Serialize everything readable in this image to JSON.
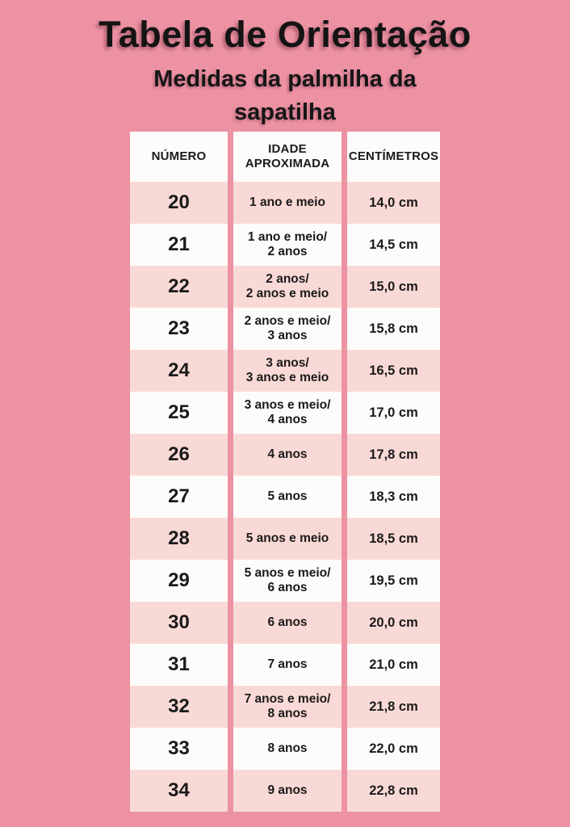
{
  "page": {
    "title": "Tabela de Orientação",
    "subtitle": "Medidas da palmilha da\nsapatilha"
  },
  "colors": {
    "background_pink": "#ec92a3",
    "row_pink": "#f9d9d6",
    "row_white": "#fdfcfa",
    "text": "#1a1a1a"
  },
  "chart_data": {
    "type": "table",
    "title": "Tabela de Orientação",
    "subtitle": "Medidas da palmilha da sapatilha",
    "columns": [
      "NÚMERO",
      "IDADE\nAPROXIMADA",
      "CENTÍMETROS"
    ],
    "rows": [
      {
        "numero": "20",
        "idade": "1 ano e meio",
        "cm_value": 14.0,
        "cm_label": "14,0 cm"
      },
      {
        "numero": "21",
        "idade": "1 ano e meio/\n2 anos",
        "cm_value": 14.5,
        "cm_label": "14,5 cm"
      },
      {
        "numero": "22",
        "idade": "2 anos/\n2 anos e meio",
        "cm_value": 15.0,
        "cm_label": "15,0 cm"
      },
      {
        "numero": "23",
        "idade": "2 anos e meio/\n3 anos",
        "cm_value": 15.8,
        "cm_label": "15,8 cm"
      },
      {
        "numero": "24",
        "idade": "3 anos/\n3 anos e meio",
        "cm_value": 16.5,
        "cm_label": "16,5 cm"
      },
      {
        "numero": "25",
        "idade": "3 anos e meio/\n4 anos",
        "cm_value": 17.0,
        "cm_label": "17,0 cm"
      },
      {
        "numero": "26",
        "idade": "4 anos",
        "cm_value": 17.8,
        "cm_label": "17,8 cm"
      },
      {
        "numero": "27",
        "idade": "5 anos",
        "cm_value": 18.3,
        "cm_label": "18,3 cm"
      },
      {
        "numero": "28",
        "idade": "5 anos e meio",
        "cm_value": 18.5,
        "cm_label": "18,5 cm"
      },
      {
        "numero": "29",
        "idade": "5 anos e meio/\n6 anos",
        "cm_value": 19.5,
        "cm_label": "19,5 cm"
      },
      {
        "numero": "30",
        "idade": "6 anos",
        "cm_value": 20.0,
        "cm_label": "20,0 cm"
      },
      {
        "numero": "31",
        "idade": "7 anos",
        "cm_value": 21.0,
        "cm_label": "21,0 cm"
      },
      {
        "numero": "32",
        "idade": "7 anos e meio/\n8 anos",
        "cm_value": 21.8,
        "cm_label": "21,8 cm"
      },
      {
        "numero": "33",
        "idade": "8 anos",
        "cm_value": 22.0,
        "cm_label": "22,0 cm"
      },
      {
        "numero": "34",
        "idade": "9 anos",
        "cm_value": 22.8,
        "cm_label": "22,8 cm"
      }
    ]
  }
}
